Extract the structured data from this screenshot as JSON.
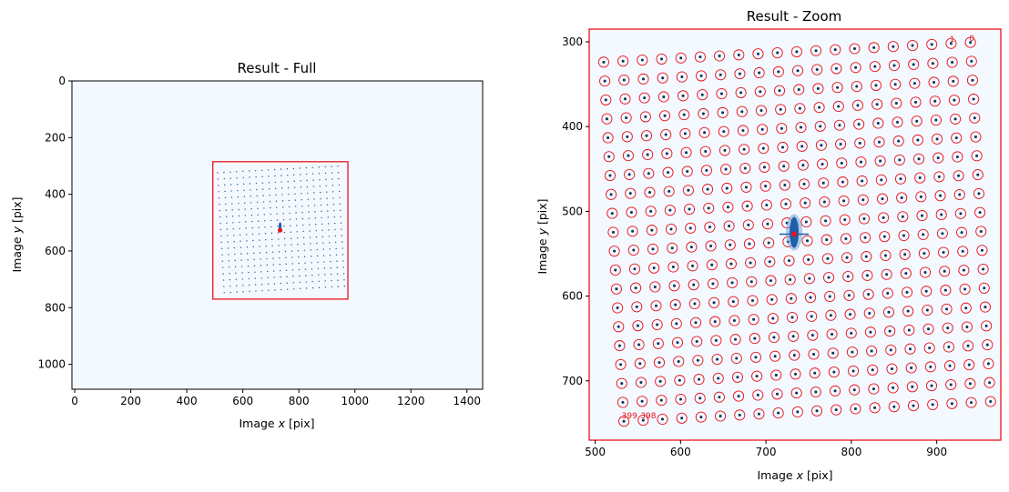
{
  "chart_data": [
    {
      "type": "image",
      "title": "Result - Full",
      "xlabel_prefix": "Image ",
      "xlabel_var": "x",
      "xlabel_suffix": " [pix]",
      "ylabel_prefix": "Image ",
      "ylabel_var": "y",
      "ylabel_suffix": " [pix]",
      "xlim": [
        -10,
        1456
      ],
      "ylim": [
        1088,
        0
      ],
      "xticks": [
        0,
        200,
        400,
        600,
        800,
        1000,
        1200,
        1400
      ],
      "yticks": [
        0,
        200,
        400,
        600,
        800,
        1000
      ],
      "zoom_box": {
        "x0": 493,
        "x1": 975,
        "y0": 285,
        "y1": 770
      },
      "spot_grid": {
        "x_start": 510,
        "x_step": 22.6,
        "cols": 20,
        "y_start": 324,
        "y_step": 22.3,
        "rows": 20,
        "shear": 0.055
      },
      "center_spot": {
        "x": 733,
        "y": 527
      },
      "background_color": "#f4f9ff",
      "box_color": "#e8141e",
      "spot_color": "#2b5b8a"
    },
    {
      "type": "image",
      "title": "Result - Zoom",
      "xlabel_prefix": "Image ",
      "xlabel_var": "x",
      "xlabel_suffix": " [pix]",
      "ylabel_prefix": "Image ",
      "ylabel_var": "y",
      "ylabel_suffix": " [pix]",
      "xlim": [
        493,
        975
      ],
      "ylim": [
        770,
        285
      ],
      "xticks": [
        500,
        600,
        700,
        800,
        900
      ],
      "yticks": [
        300,
        400,
        500,
        600,
        700
      ],
      "center_spot": {
        "x": 733,
        "y": 527
      },
      "spot_labels": [
        {
          "text": "1",
          "x": 915,
          "y": 300
        },
        {
          "text": "0",
          "x": 938,
          "y": 299
        },
        {
          "text": "399",
          "x": 531,
          "y": 744
        },
        {
          "text": "398",
          "x": 553,
          "y": 744
        }
      ],
      "background_color": "#f4f9ff",
      "ring_color": "#e8141e",
      "spot_color": "#0b2e57"
    }
  ]
}
